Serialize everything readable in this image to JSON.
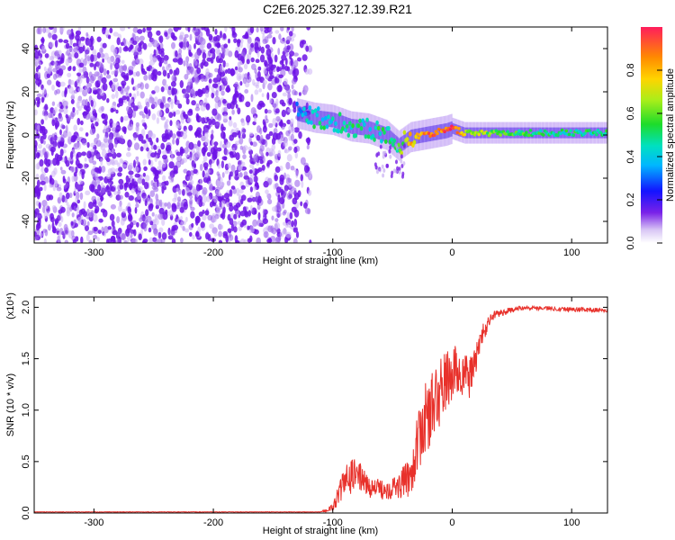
{
  "title": "C2E6.2025.327.12.39.R21",
  "chart_data": [
    {
      "type": "heatmap",
      "name": "spectrogram",
      "xlabel": "Height of straight line (km)",
      "ylabel": "Frequency (Hz)",
      "xlim": [
        -350,
        130
      ],
      "ylim": [
        -50,
        50
      ],
      "xticks": [
        -300,
        -200,
        -100,
        0,
        100
      ],
      "yticks": [
        -40,
        -20,
        0,
        20,
        40
      ],
      "colorbar": {
        "label": "Normalized spectral amplitude",
        "range": [
          0,
          1
        ],
        "ticks": [
          "0.0",
          "0.2",
          "0.4",
          "0.6",
          "0.8"
        ],
        "tick_values": [
          0.0,
          0.2,
          0.4,
          0.6,
          0.8
        ]
      },
      "noise_region_x": [
        -350,
        -130
      ],
      "signal_ridge": [
        {
          "x": -130,
          "f": 10,
          "amp": 0.35
        },
        {
          "x": -115,
          "f": 8,
          "amp": 0.45
        },
        {
          "x": -100,
          "f": 7,
          "amp": 0.45
        },
        {
          "x": -85,
          "f": 4,
          "amp": 0.5
        },
        {
          "x": -70,
          "f": 3,
          "amp": 0.45
        },
        {
          "x": -55,
          "f": 0,
          "amp": 0.5
        },
        {
          "x": -45,
          "f": -5,
          "amp": 0.55
        },
        {
          "x": -35,
          "f": -1,
          "amp": 0.75
        },
        {
          "x": -25,
          "f": 0,
          "amp": 0.85
        },
        {
          "x": -15,
          "f": 1,
          "amp": 0.9
        },
        {
          "x": -5,
          "f": 2,
          "amp": 0.9
        },
        {
          "x": 0,
          "f": 3,
          "amp": 0.95
        },
        {
          "x": 10,
          "f": 1,
          "amp": 0.7
        },
        {
          "x": 40,
          "f": 1,
          "amp": 0.55
        },
        {
          "x": 80,
          "f": 1,
          "amp": 0.5
        },
        {
          "x": 130,
          "f": 1,
          "amp": 0.5
        }
      ]
    },
    {
      "type": "line",
      "name": "snr",
      "xlabel": "Height of straight line (km)",
      "ylabel": "SNR (10 * v/v)",
      "multiplier_label": "(x10⁴)",
      "xlim": [
        -350,
        130
      ],
      "ylim": [
        0,
        2.1
      ],
      "xticks": [
        -300,
        -200,
        -100,
        0,
        100
      ],
      "yticks": [
        "0.0",
        "0.5",
        "1.0",
        "1.5",
        "2.0"
      ],
      "ytick_values": [
        0.0,
        0.5,
        1.0,
        1.5,
        2.0
      ],
      "color": "#e8312b",
      "envelope": [
        {
          "x": -350,
          "base": 0.01,
          "noise": 0.005
        },
        {
          "x": -110,
          "base": 0.01,
          "noise": 0.005
        },
        {
          "x": -100,
          "base": 0.05,
          "noise": 0.08
        },
        {
          "x": -90,
          "base": 0.25,
          "noise": 0.35
        },
        {
          "x": -80,
          "base": 0.35,
          "noise": 0.3
        },
        {
          "x": -70,
          "base": 0.22,
          "noise": 0.2
        },
        {
          "x": -60,
          "base": 0.2,
          "noise": 0.2
        },
        {
          "x": -45,
          "base": 0.22,
          "noise": 0.25
        },
        {
          "x": -35,
          "base": 0.3,
          "noise": 0.4
        },
        {
          "x": -25,
          "base": 0.75,
          "noise": 0.7
        },
        {
          "x": -15,
          "base": 0.95,
          "noise": 0.75
        },
        {
          "x": -5,
          "base": 1.2,
          "noise": 0.6
        },
        {
          "x": 5,
          "base": 1.3,
          "noise": 0.55
        },
        {
          "x": 15,
          "base": 1.25,
          "noise": 0.4
        },
        {
          "x": 25,
          "base": 1.7,
          "noise": 0.2
        },
        {
          "x": 35,
          "base": 1.93,
          "noise": 0.08
        },
        {
          "x": 60,
          "base": 2.0,
          "noise": 0.04
        },
        {
          "x": 100,
          "base": 1.98,
          "noise": 0.05
        },
        {
          "x": 130,
          "base": 1.97,
          "noise": 0.04
        }
      ]
    }
  ]
}
